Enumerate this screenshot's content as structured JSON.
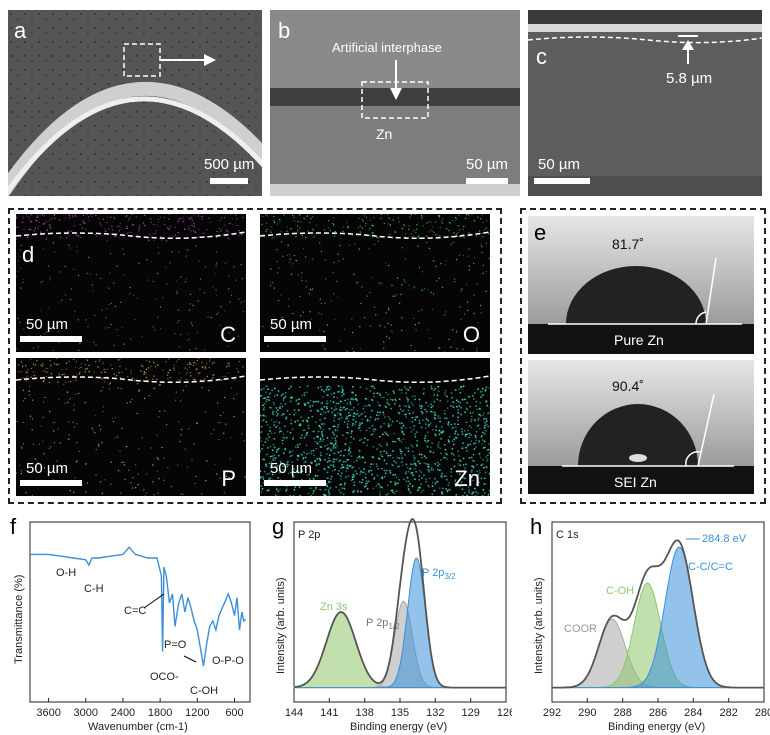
{
  "panels": {
    "a": {
      "label": "a",
      "scale": "500 µm"
    },
    "b": {
      "label": "b",
      "scale": "50 µm",
      "interphase": "Artificial interphase",
      "substrate": "Zn"
    },
    "c": {
      "label": "c",
      "scale": "50 µm",
      "thickness": "5.8 µm"
    },
    "d": {
      "label": "d",
      "maps": [
        {
          "element": "C",
          "scale": "50 µm",
          "color": "#c04cc8"
        },
        {
          "element": "O",
          "scale": "50 µm",
          "color": "#3fd24a"
        },
        {
          "element": "P",
          "scale": "50 µm",
          "color": "#d9a44e"
        },
        {
          "element": "Zn",
          "scale": "50 µm",
          "color": "#3fd8c4"
        }
      ]
    },
    "e": {
      "label": "e",
      "drops": [
        {
          "angle": "81.7˚",
          "caption": "Pure Zn"
        },
        {
          "angle": "90.4˚",
          "caption": "SEI Zn"
        }
      ]
    },
    "f": {
      "label": "f"
    },
    "g": {
      "label": "g"
    },
    "h": {
      "label": "h"
    }
  },
  "chart_data": [
    {
      "panel": "f",
      "type": "line",
      "xlabel": "Wavenumber (cm-1)",
      "ylabel": "Transmittance (%)",
      "xlim": [
        3900,
        350
      ],
      "xticks": [
        3600,
        3000,
        2400,
        1800,
        1200,
        600
      ],
      "series": [
        {
          "color": "#3a8fd8",
          "x": [
            3900,
            3600,
            3400,
            3200,
            3000,
            2950,
            2900,
            2800,
            2600,
            2400,
            2300,
            2200,
            2000,
            1850,
            1780,
            1760,
            1740,
            1700,
            1650,
            1600,
            1560,
            1500,
            1450,
            1400,
            1350,
            1300,
            1250,
            1200,
            1150,
            1100,
            1050,
            1000,
            950,
            900,
            850,
            800,
            750,
            700,
            650,
            600,
            560,
            520,
            480,
            450,
            420
          ],
          "y": [
            82,
            82,
            81,
            80,
            79,
            76,
            80,
            80,
            81,
            82,
            86,
            82,
            80,
            80,
            70,
            28,
            75,
            70,
            55,
            60,
            42,
            55,
            60,
            50,
            58,
            52,
            45,
            40,
            30,
            20,
            32,
            42,
            45,
            40,
            48,
            52,
            56,
            60,
            55,
            48,
            58,
            40,
            50,
            45,
            46
          ]
        }
      ],
      "annotations": [
        "O-H",
        "C-H",
        "C=C",
        "P=O",
        "OCO-",
        "C-OH",
        "O-P-O"
      ]
    },
    {
      "panel": "g",
      "type": "line",
      "title": "P 2p",
      "xlabel": "Binding energy (eV)",
      "ylabel": "Intensity (arb. units)",
      "xlim": [
        144,
        126
      ],
      "xticks": [
        144,
        141,
        138,
        135,
        132,
        129,
        126
      ],
      "peaks": [
        {
          "name": "Zn 3s",
          "center": 140.0,
          "height": 0.42,
          "width": 1.25,
          "color": "#8fc66b"
        },
        {
          "name": "P 2p1/2",
          "center": 134.7,
          "height": 0.48,
          "width": 0.75,
          "color": "#a8a8a8"
        },
        {
          "name": "P 2p3/2",
          "center": 133.6,
          "height": 0.72,
          "width": 0.75,
          "color": "#3a8fd8"
        }
      ],
      "labels": {
        "zn3s": "Zn 3s",
        "p12": "P 2p",
        "p12sub": "1/2",
        "p32": "P 2p",
        "p32sub": "3/2"
      }
    },
    {
      "panel": "h",
      "type": "line",
      "title": "C 1s",
      "xlabel": "Binding energy (eV)",
      "ylabel": "Intensity (arb. units)",
      "xlim": [
        292,
        280
      ],
      "xticks": [
        292,
        290,
        288,
        286,
        284,
        282,
        280
      ],
      "peaks": [
        {
          "name": "COOR",
          "center": 288.6,
          "height": 0.38,
          "width": 0.75,
          "color": "#a8a8a8"
        },
        {
          "name": "C-OH",
          "center": 286.6,
          "height": 0.58,
          "width": 0.75,
          "color": "#8fc66b"
        },
        {
          "name": "C-C/C=C",
          "center": 284.8,
          "height": 0.78,
          "width": 0.8,
          "color": "#3a8fd8"
        }
      ],
      "labels": {
        "coor": "COOR",
        "coh": "C-OH",
        "cc": "C-C/C=C",
        "ev": "284.8 eV"
      }
    }
  ]
}
